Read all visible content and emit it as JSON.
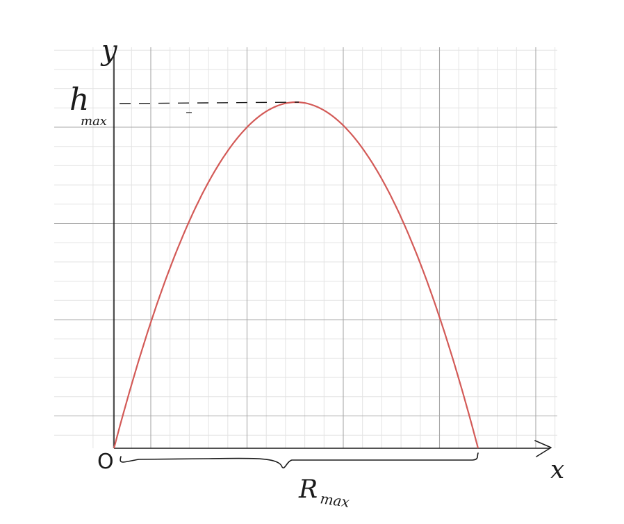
{
  "diagram": {
    "labels": {
      "y_axis": "y",
      "x_axis": "x",
      "origin": "O",
      "h_main": "h",
      "h_sub": "max",
      "r_main": "R",
      "r_sub": "max"
    },
    "colors": {
      "grid_minor": "#e3e3e3",
      "grid_major": "#a8a8a8",
      "axis": "#1a1a1a",
      "trajectory": "#d35a57",
      "ink": "#1a1a1a"
    }
  }
}
